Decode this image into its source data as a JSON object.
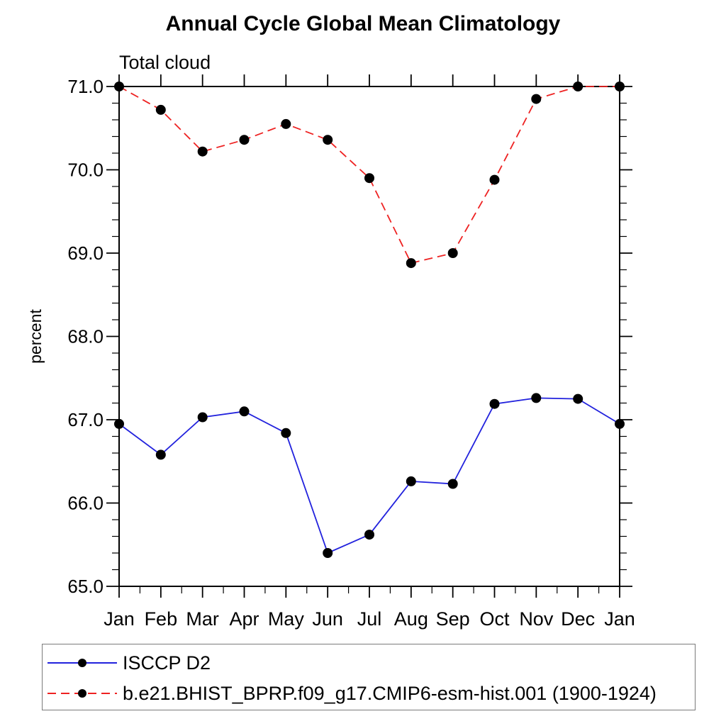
{
  "chart_data": {
    "type": "line",
    "title": "Annual Cycle Global Mean Climatology",
    "subtitle": "Total cloud",
    "ylabel": "percent",
    "xlabel": "",
    "categories": [
      "Jan",
      "Feb",
      "Mar",
      "Apr",
      "May",
      "Jun",
      "Jul",
      "Aug",
      "Sep",
      "Oct",
      "Nov",
      "Dec",
      "Jan"
    ],
    "ylim": [
      65.0,
      71.0
    ],
    "y_major_tick_labels": [
      "65.0",
      "66.0",
      "67.0",
      "68.0",
      "69.0",
      "70.0",
      "71.0"
    ],
    "y_minor_step": 0.2,
    "grid": false,
    "legend_position": "bottom-left-box",
    "axis_color": "#000000",
    "marker_shape": "filled-circle",
    "series": [
      {
        "name": "ISCCP D2",
        "color": "#2222dd",
        "style": "solid",
        "marker_color": "#000000",
        "values": [
          66.95,
          66.58,
          67.03,
          67.1,
          66.84,
          65.4,
          65.62,
          66.26,
          66.23,
          67.19,
          67.26,
          67.25,
          66.95
        ]
      },
      {
        "name": "b.e21.BHIST_BPRP.f09_g17.CMIP6-esm-hist.001 (1900-1924)",
        "color": "#ee2222",
        "style": "dashed",
        "marker_color": "#000000",
        "values": [
          71.0,
          70.72,
          70.22,
          70.36,
          70.55,
          70.36,
          69.9,
          68.88,
          69.0,
          69.88,
          70.85,
          71.0,
          71.0
        ]
      }
    ]
  }
}
